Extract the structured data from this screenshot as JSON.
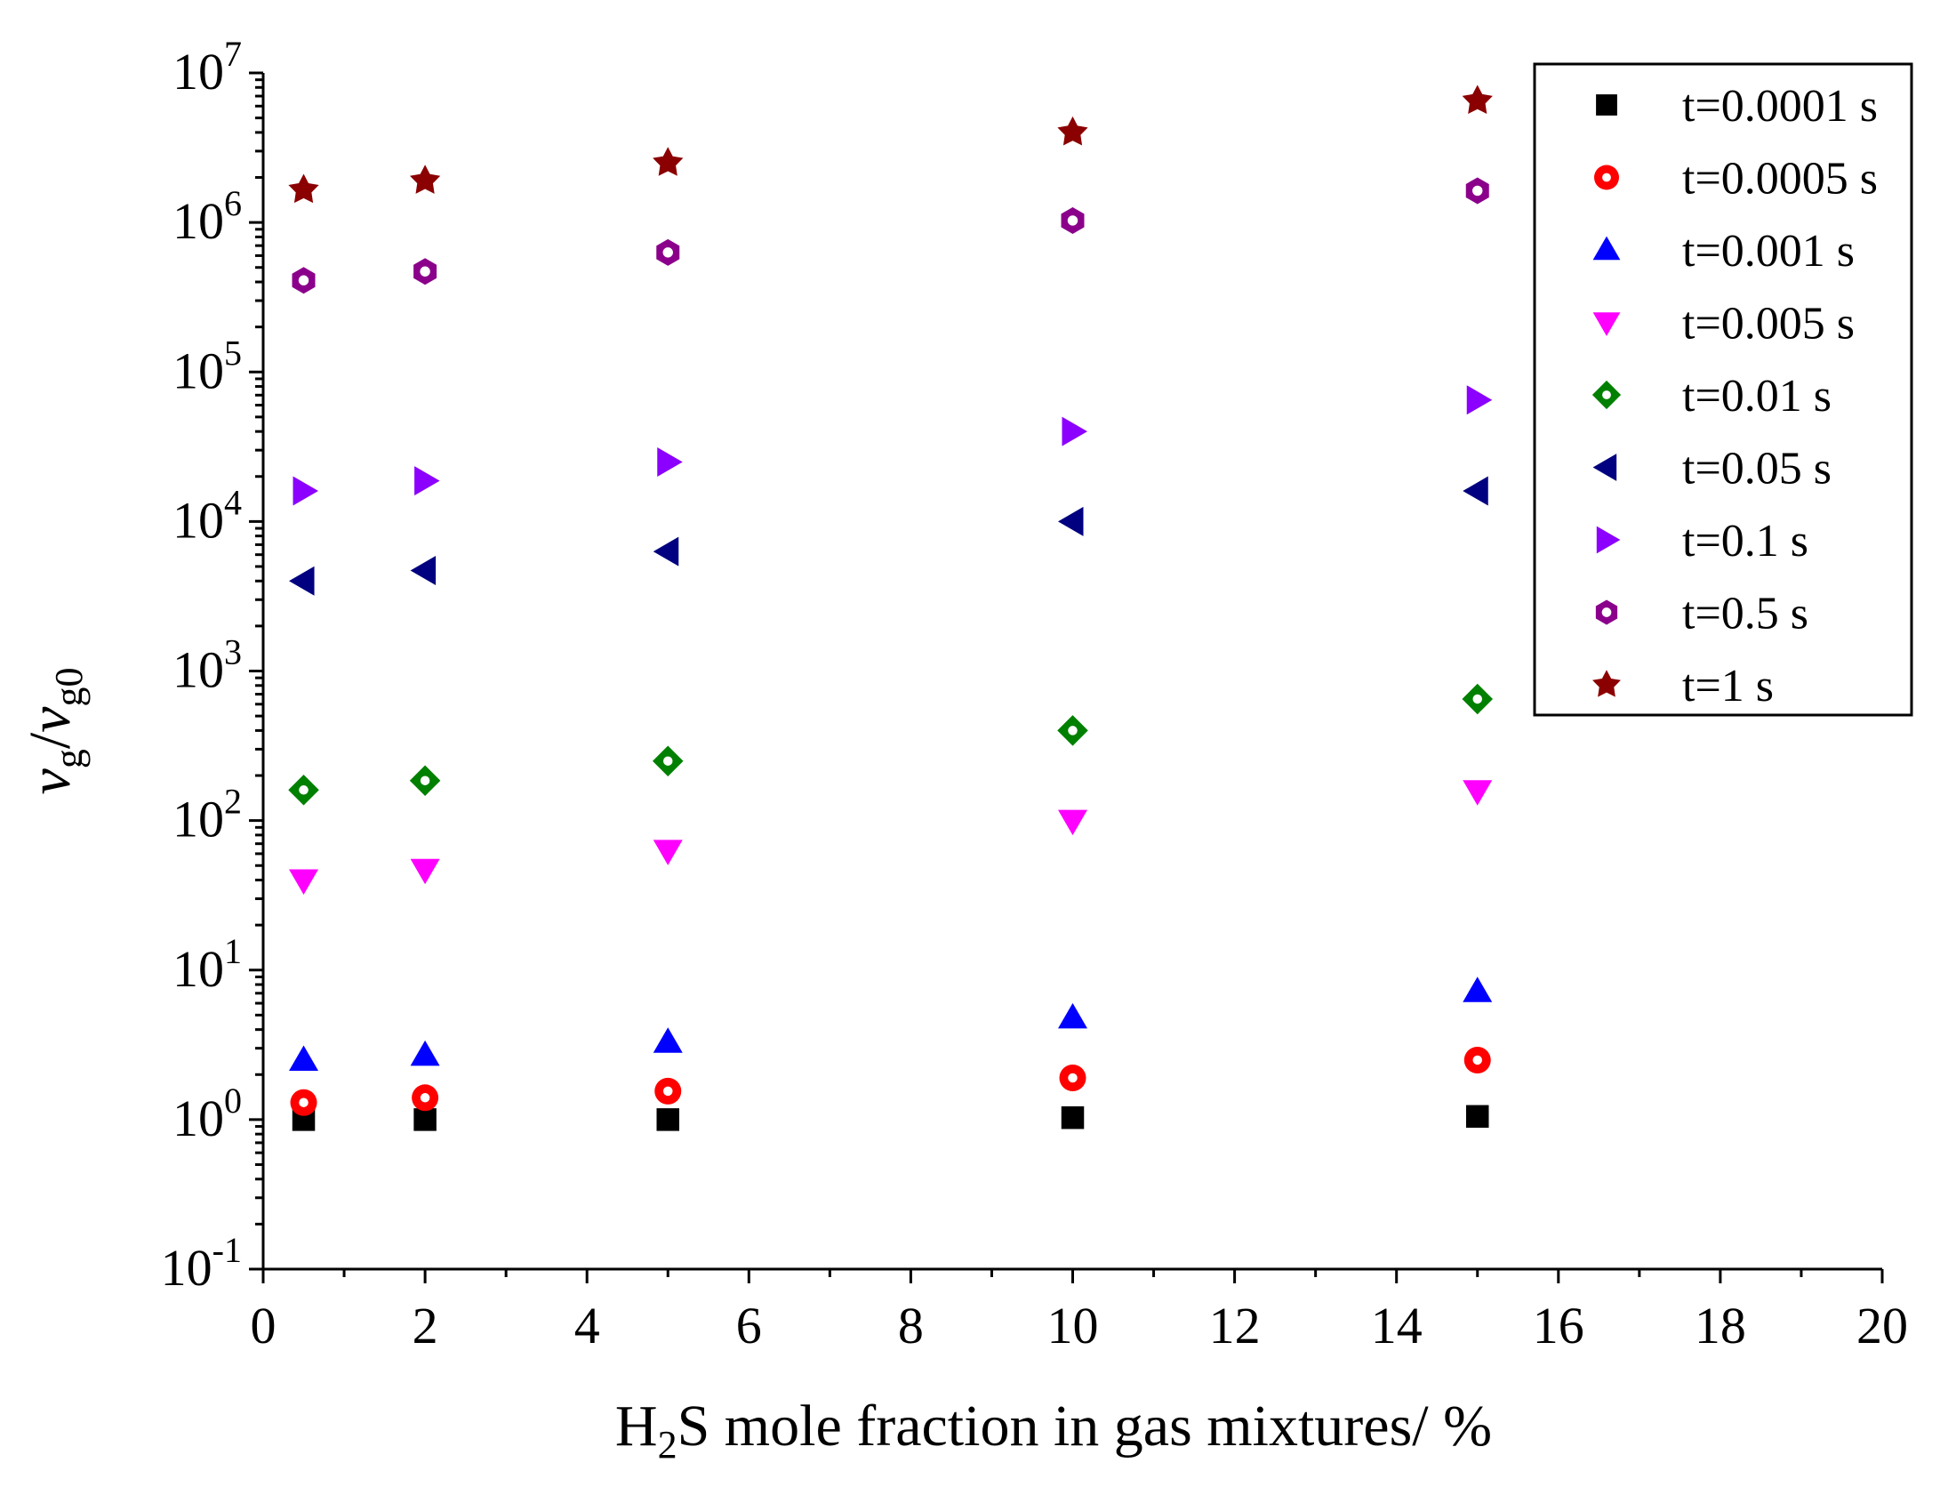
{
  "chart_data": {
    "type": "scatter",
    "title": "",
    "xlabel": {
      "pre": "H",
      "sub": "2",
      "post": "S mole fraction in gas mixtures/ %"
    },
    "ylabel": {
      "num": "v",
      "num_sub": "g",
      "slash": "/",
      "den": "v",
      "den_sub": "g0"
    },
    "x_scale": "linear",
    "y_scale": "log",
    "xlim": [
      0,
      20
    ],
    "ylim": [
      0.1,
      10000000
    ],
    "x_ticks": [
      0,
      2,
      4,
      6,
      8,
      10,
      12,
      14,
      16,
      18,
      20
    ],
    "x_tick_labels": [
      "0",
      "2",
      "4",
      "6",
      "8",
      "10",
      "12",
      "14",
      "16",
      "18",
      "20"
    ],
    "y_ticks": [
      {
        "value": 0.1,
        "base": "10",
        "exp": "-1"
      },
      {
        "value": 1,
        "base": "10",
        "exp": "0"
      },
      {
        "value": 10,
        "base": "10",
        "exp": "1"
      },
      {
        "value": 100,
        "base": "10",
        "exp": "2"
      },
      {
        "value": 1000,
        "base": "10",
        "exp": "3"
      },
      {
        "value": 10000,
        "base": "10",
        "exp": "4"
      },
      {
        "value": 100000,
        "base": "10",
        "exp": "5"
      },
      {
        "value": 1000000,
        "base": "10",
        "exp": "6"
      },
      {
        "value": 10000000,
        "base": "10",
        "exp": "7"
      }
    ],
    "x": [
      0.5,
      2,
      5,
      10,
      15
    ],
    "legend_position": "top-right",
    "series": [
      {
        "name": "t=0.0001 s",
        "marker": "square",
        "color": "#000000",
        "values": [
          1.0,
          1.0,
          1.0,
          1.03,
          1.05
        ]
      },
      {
        "name": "t=0.0005 s",
        "marker": "circle",
        "color": "#ff0000",
        "values": [
          1.3,
          1.4,
          1.55,
          1.9,
          2.5
        ]
      },
      {
        "name": "t=0.001 s",
        "marker": "triangle-up",
        "color": "#0000ff",
        "values": [
          2.5,
          2.7,
          3.3,
          4.8,
          7.2
        ]
      },
      {
        "name": "t=0.005 s",
        "marker": "triangle-down",
        "color": "#ff00ff",
        "values": [
          40,
          47,
          63,
          100,
          158
        ]
      },
      {
        "name": "t=0.01 s",
        "marker": "diamond",
        "color": "#008000",
        "values": [
          160,
          185,
          250,
          400,
          650
        ]
      },
      {
        "name": "t=0.05 s",
        "marker": "triangle-left",
        "color": "#000080",
        "values": [
          4000,
          4700,
          6300,
          10000,
          16000
        ]
      },
      {
        "name": "t=0.1 s",
        "marker": "triangle-right",
        "color": "#8b00ff",
        "values": [
          16000,
          18700,
          25000,
          40000,
          65000
        ]
      },
      {
        "name": "t=0.5 s",
        "marker": "hexagon",
        "color": "#8b008b",
        "values": [
          410000,
          470000,
          630000,
          1030000,
          1630000
        ]
      },
      {
        "name": "t=1 s",
        "marker": "star",
        "color": "#8b0000",
        "values": [
          1650000,
          1900000,
          2500000,
          4000000,
          6500000
        ]
      }
    ]
  }
}
